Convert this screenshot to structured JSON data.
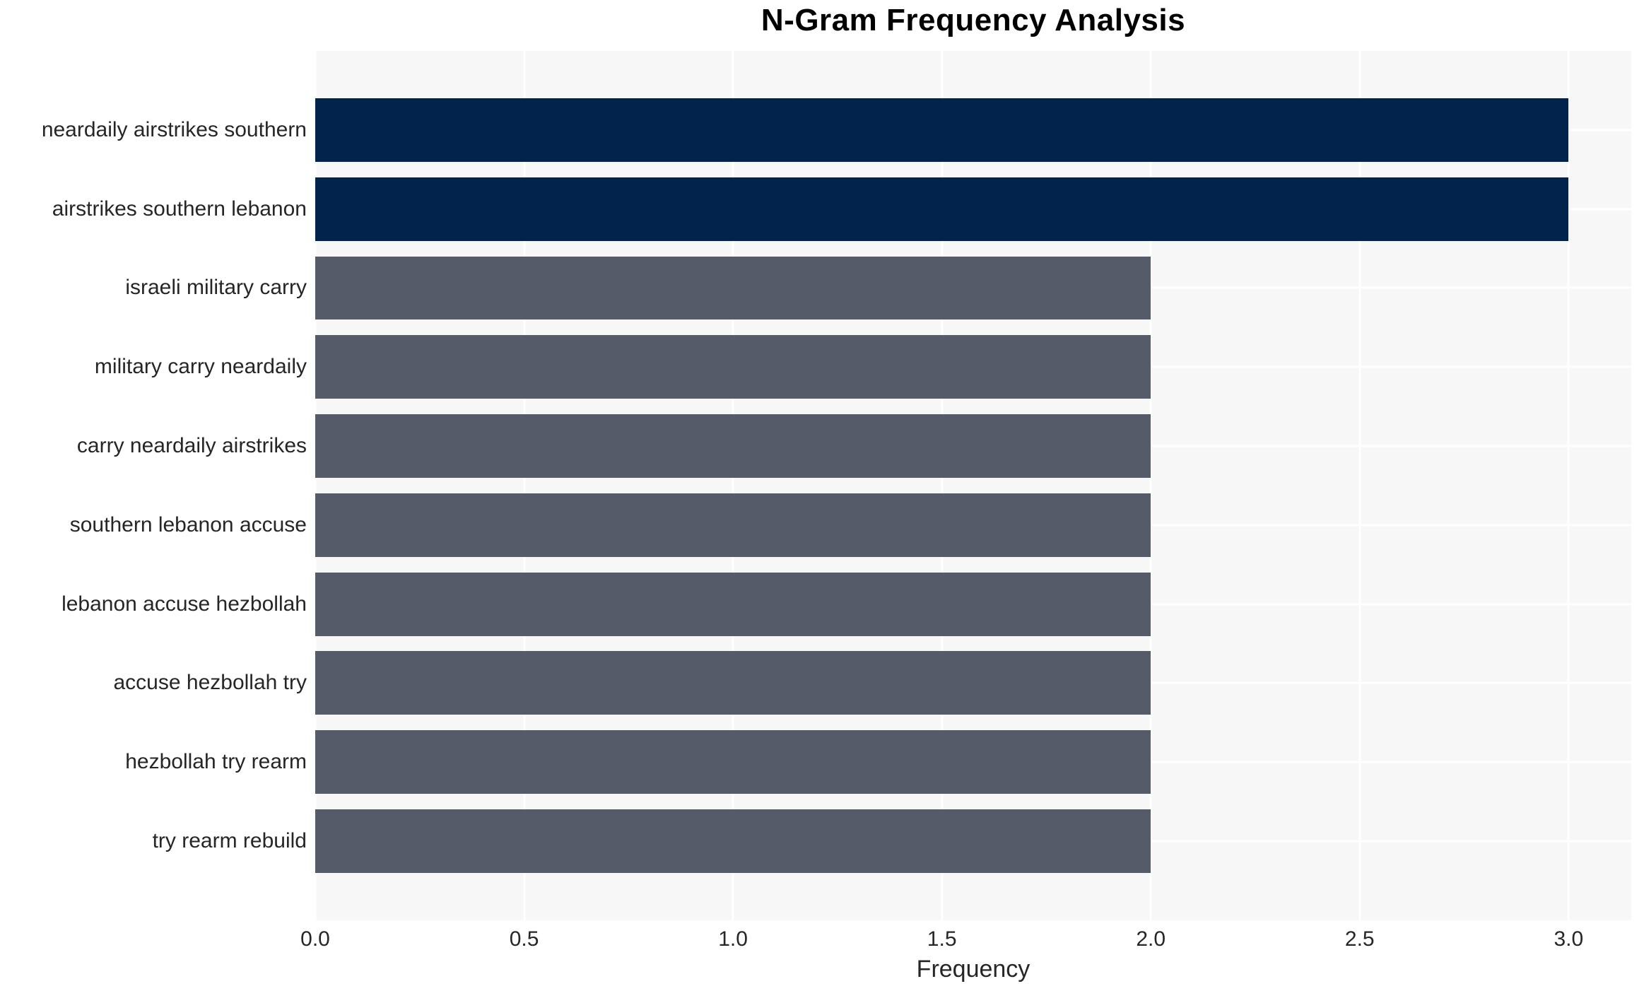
{
  "chart_data": {
    "type": "bar",
    "orientation": "horizontal",
    "title": "N-Gram Frequency Analysis",
    "xlabel": "Frequency",
    "ylabel": "",
    "categories": [
      "neardaily airstrikes southern",
      "airstrikes southern lebanon",
      "israeli military carry",
      "military carry neardaily",
      "carry neardaily airstrikes",
      "southern lebanon accuse",
      "lebanon accuse hezbollah",
      "accuse hezbollah try",
      "hezbollah try rearm",
      "try rearm rebuild"
    ],
    "values": [
      3,
      3,
      2,
      2,
      2,
      2,
      2,
      2,
      2,
      2
    ],
    "bar_colors": [
      "#02234c",
      "#02234c",
      "#565b6a",
      "#565b6a",
      "#565b6a",
      "#565b6a",
      "#565b6a",
      "#565b6a",
      "#565b6a",
      "#565b6a"
    ],
    "xlim": [
      0,
      3.15
    ],
    "xticks": [
      0,
      0.5,
      1,
      1.5,
      2,
      2.5,
      3
    ],
    "xtick_labels": [
      "0.0",
      "0.5",
      "1.0",
      "1.5",
      "2.0",
      "2.5",
      "3.0"
    ],
    "grid": true,
    "legend": "none",
    "colors": {
      "highlight_bar": "#02234c",
      "base_bar": "#565b6a",
      "plot_background": "#f7f7f8",
      "gridline": "#ffffff",
      "tick_text": "#262626",
      "title_text": "#000000"
    }
  }
}
